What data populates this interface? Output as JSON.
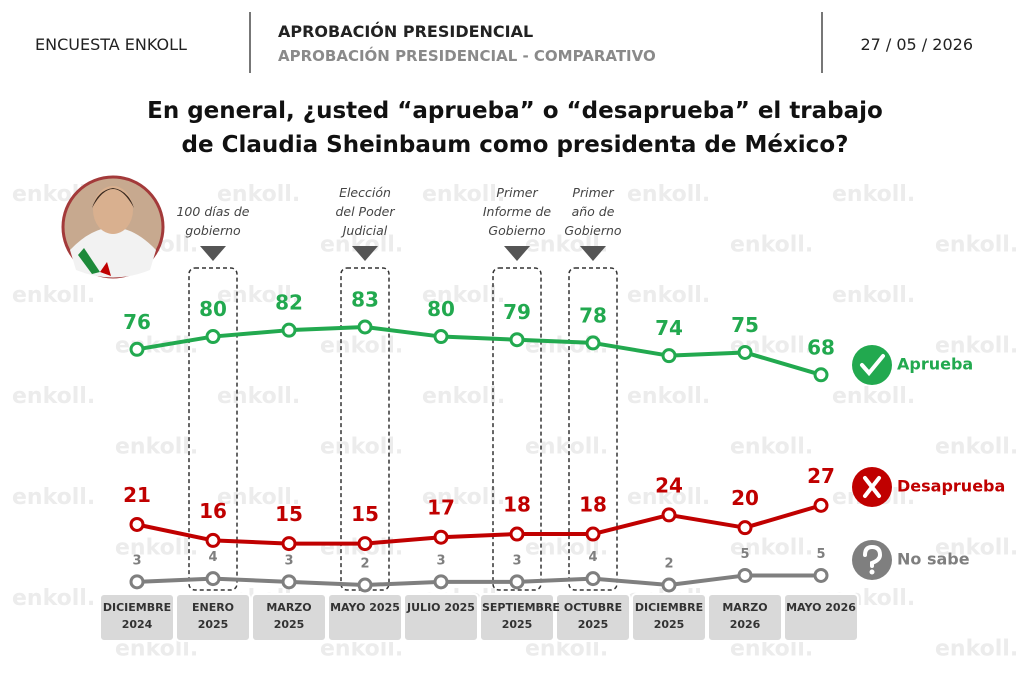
{
  "header": {
    "source": "ENCUESTA ENKOLL",
    "section": "APROBACIÓN PRESIDENCIAL",
    "subsection": "APROBACIÓN PRESIDENCIAL - COMPARATIVO",
    "date": "27 / 05 / 2026"
  },
  "watermark": "enkoll.",
  "chart_data": {
    "type": "line",
    "title": "En general, ¿usted “aprueba” o “desaprueba” el trabajo de Claudia Sheinbaum como presidenta de México?",
    "categories": [
      "DICIEMBRE 2024",
      "ENERO 2025",
      "MARZO 2025",
      "MAYO 2025",
      "JULIO 2025",
      "SEPTIEMBRE 2025",
      "OCTUBRE 2025",
      "DICIEMBRE 2025",
      "MARZO 2026",
      "MAYO 2026"
    ],
    "series": [
      {
        "name": "Aprueba",
        "color": "#22a94f",
        "values": [
          76,
          80,
          82,
          83,
          80,
          79,
          78,
          74,
          75,
          68
        ]
      },
      {
        "name": "Desaprueba",
        "color": "#c00000",
        "values": [
          21,
          16,
          15,
          15,
          17,
          18,
          18,
          24,
          20,
          27
        ]
      },
      {
        "name": "No sabe",
        "color": "#7f7f7f",
        "values": [
          3,
          4,
          3,
          2,
          3,
          3,
          4,
          2,
          5,
          5
        ]
      }
    ],
    "annotations": [
      {
        "text": "100 días de gobierno",
        "category": "ENERO 2025"
      },
      {
        "text": "Elección del Poder Judicial",
        "category": "MAYO 2025"
      },
      {
        "text": "Primer Informe de Gobierno",
        "category": "SEPTIEMBRE 2025"
      },
      {
        "text": "Primer año de Gobierno",
        "category": "OCTUBRE 2025"
      }
    ]
  }
}
